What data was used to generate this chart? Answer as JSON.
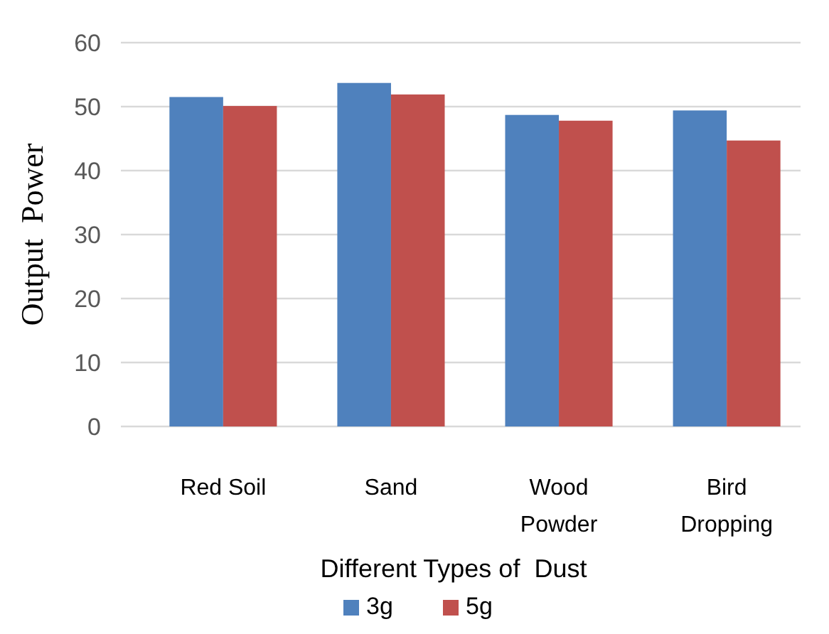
{
  "chart_data": {
    "type": "bar",
    "ylabel": "Output  Power",
    "xlabel": "Different Types of  Dust",
    "categories": [
      "Red Soil",
      "Sand",
      "Wood Powder",
      "Bird Dropping"
    ],
    "series": [
      {
        "name": "3g",
        "color": "#4f81bd",
        "values": [
          51.5,
          53.7,
          48.7,
          49.4
        ]
      },
      {
        "name": "5g",
        "color": "#c0504d",
        "values": [
          50.1,
          51.9,
          47.8,
          44.7
        ]
      }
    ],
    "ylim": [
      0,
      60
    ],
    "yticks": [
      0,
      10,
      20,
      30,
      40,
      50,
      60
    ],
    "grid": "y",
    "legend": "bottom"
  }
}
